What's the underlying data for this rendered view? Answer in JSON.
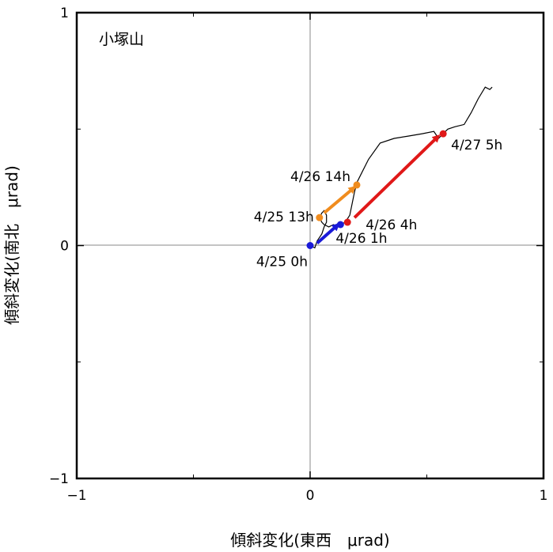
{
  "chart_data": {
    "type": "scatter",
    "title": "",
    "station_label": "小塚山",
    "xlabel": "傾斜変化(東西　μrad)",
    "ylabel": "傾斜変化(南北　μrad)",
    "xlim": [
      -1,
      1
    ],
    "ylim": [
      -1,
      1
    ],
    "x_ticks": [
      {
        "value": -1,
        "label": "−1"
      },
      {
        "value": 0,
        "label": "0"
      },
      {
        "value": 1,
        "label": "1"
      }
    ],
    "y_ticks": [
      {
        "value": -1,
        "label": "−1"
      },
      {
        "value": 0,
        "label": "0"
      },
      {
        "value": 1,
        "label": "1"
      }
    ],
    "minor_ticks": [
      -0.5,
      0.5
    ],
    "grid": "zero lines only",
    "trace": {
      "color": "#000000",
      "points": [
        [
          0.0,
          0.0
        ],
        [
          0.02,
          -0.01
        ],
        [
          0.03,
          0.02
        ],
        [
          0.05,
          0.05
        ],
        [
          0.06,
          0.08
        ],
        [
          0.07,
          0.1
        ],
        [
          0.07,
          0.13
        ],
        [
          0.06,
          0.15
        ],
        [
          0.05,
          0.14
        ],
        [
          0.04,
          0.12
        ],
        [
          0.05,
          0.1
        ],
        [
          0.06,
          0.09
        ],
        [
          0.08,
          0.08
        ],
        [
          0.1,
          0.09
        ],
        [
          0.12,
          0.08
        ],
        [
          0.13,
          0.09
        ],
        [
          0.15,
          0.1
        ],
        [
          0.17,
          0.13
        ],
        [
          0.18,
          0.18
        ],
        [
          0.19,
          0.23
        ],
        [
          0.2,
          0.27
        ],
        [
          0.22,
          0.31
        ],
        [
          0.25,
          0.37
        ],
        [
          0.3,
          0.44
        ],
        [
          0.36,
          0.46
        ],
        [
          0.42,
          0.47
        ],
        [
          0.48,
          0.48
        ],
        [
          0.53,
          0.49
        ],
        [
          0.55,
          0.46
        ],
        [
          0.57,
          0.48
        ],
        [
          0.59,
          0.5
        ],
        [
          0.62,
          0.51
        ],
        [
          0.66,
          0.52
        ],
        [
          0.69,
          0.57
        ],
        [
          0.72,
          0.63
        ],
        [
          0.75,
          0.68
        ],
        [
          0.77,
          0.67
        ],
        [
          0.78,
          0.68
        ]
      ]
    },
    "markers": [
      {
        "label": "4/25 0h",
        "x": 0.0,
        "y": 0.0,
        "color": "#1a1ad8"
      },
      {
        "label": "4/26 1h",
        "x": 0.13,
        "y": 0.09,
        "color": "#1a1ad8"
      },
      {
        "label": "4/25 13h",
        "x": 0.04,
        "y": 0.12,
        "color": "#f08c1e"
      },
      {
        "label": "4/26 14h",
        "x": 0.2,
        "y": 0.26,
        "color": "#f08c1e"
      },
      {
        "label": "4/26 4h",
        "x": 0.16,
        "y": 0.1,
        "color": "#e01818"
      },
      {
        "label": "4/27 5h",
        "x": 0.57,
        "y": 0.48,
        "color": "#e01818"
      }
    ],
    "arrows": [
      {
        "from": [
          0.03,
          0.01
        ],
        "to": [
          0.12,
          0.09
        ],
        "color": "#1a1ad8"
      },
      {
        "from": [
          0.06,
          0.14
        ],
        "to": [
          0.19,
          0.25
        ],
        "color": "#f08c1e"
      },
      {
        "from": [
          0.19,
          0.12
        ],
        "to": [
          0.55,
          0.47
        ],
        "color": "#e01818"
      }
    ]
  }
}
